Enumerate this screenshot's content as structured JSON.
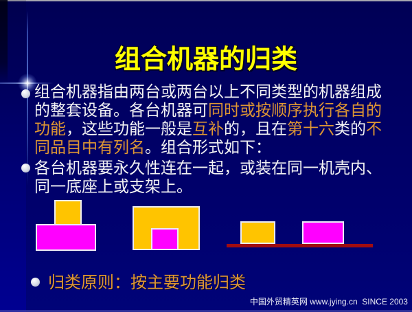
{
  "title": "组合机器的归类",
  "colors": {
    "background_navy": "#000066",
    "left_band_blue": "#00007d",
    "top_border_gray": "#a7a7af",
    "title_yellow": "#ffff00",
    "body_white": "#f2f2f3",
    "highlight_orange": "#de9633",
    "shape_gold": "#ffc400",
    "shape_magenta": "#ff00ff",
    "shape_border_white": "#ebebf4",
    "baseline_red": "#a00c10",
    "sparkle_blue": "#7fa8ff"
  },
  "bullets": [
    {
      "lines": [
        [
          {
            "text": "组合机器指由两台或两台以上不同类型的机器组成",
            "color": "white"
          }
        ],
        [
          {
            "text": "的整套设备。各台机器可",
            "color": "white"
          },
          {
            "text": "同时或按顺序执行各自的",
            "color": "orange"
          }
        ],
        [
          {
            "text": "功能",
            "color": "orange"
          },
          {
            "text": "，这些功能一般是",
            "color": "white"
          },
          {
            "text": "互补",
            "color": "orange"
          },
          {
            "text": "的，且在",
            "color": "white"
          },
          {
            "text": "第十六",
            "color": "orange"
          },
          {
            "text": "类的",
            "color": "white"
          },
          {
            "text": "不",
            "color": "orange"
          }
        ],
        [
          {
            "text": "同品目中有列名",
            "color": "orange"
          },
          {
            "text": "。组合形式如下：",
            "color": "white"
          }
        ]
      ]
    },
    {
      "lines": [
        [
          {
            "text": "各台机器要永久性连在一起，或装在同一机壳内、",
            "color": "white"
          }
        ],
        [
          {
            "text": "同一底座上或支架上。",
            "color": "white"
          }
        ]
      ]
    }
  ],
  "principle": {
    "text": "归类原则：按主要功能归类"
  },
  "footer": {
    "text": "中国外贸精英网 www.jying.cn  SINCE 2003"
  },
  "diagram": {
    "groups": [
      {
        "name": "stacked-combination",
        "parts": [
          "gold-block-on-top",
          "magenta-base-block"
        ]
      },
      {
        "name": "enclosed-combination",
        "parts": [
          "gold-housing",
          "magenta-inner-block"
        ]
      },
      {
        "name": "common-base-combination",
        "parts": [
          "gold-block",
          "magenta-block",
          "red-baseline"
        ]
      }
    ]
  }
}
